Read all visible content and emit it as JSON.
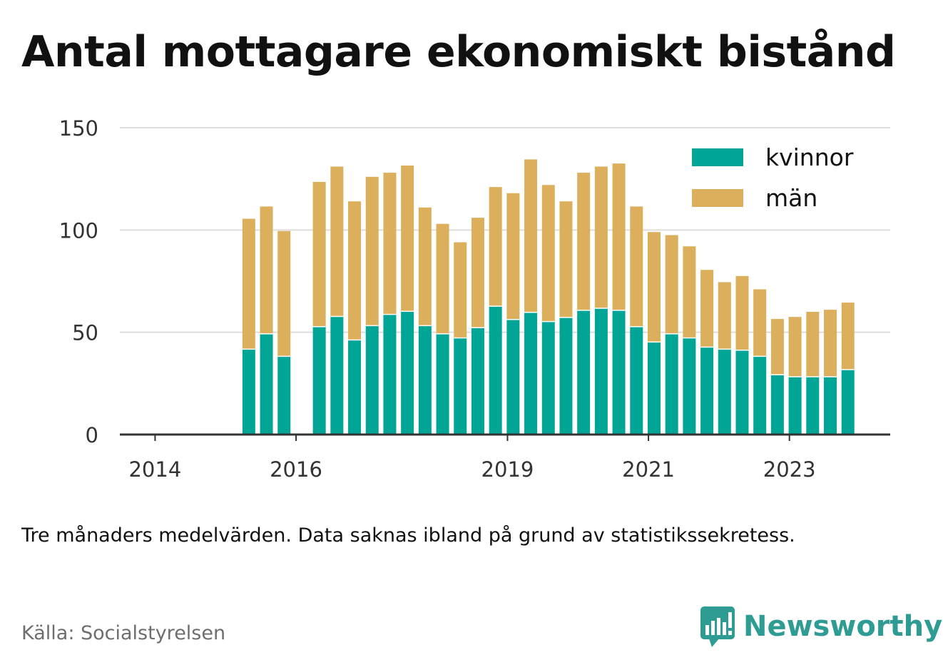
{
  "title": "Antal mottagare ekonomiskt bistånd",
  "note": "Tre månaders medelvärden. Data saknas ibland på grund av statistikssekretess.",
  "source": "Källa: Socialstyrelsen",
  "brand": {
    "name": "Newsworthy",
    "icon": "newsworthy-logo-icon",
    "color": "#2e9c93"
  },
  "colors": {
    "kvinnor": "#00a596",
    "man": "#dcaf5c",
    "grid": "#dddddd",
    "axis": "#333333"
  },
  "chart_data": {
    "type": "bar",
    "stacked": true,
    "grid": true,
    "legend_position": "top-right",
    "xlabel": "",
    "ylabel": "",
    "ylim": [
      0,
      150
    ],
    "yticks": [
      0,
      50,
      100,
      150
    ],
    "xticks": [
      {
        "label": "2014",
        "x": 2014.0
      },
      {
        "label": "2016",
        "x": 2016.0
      },
      {
        "label": "2019",
        "x": 2019.0
      },
      {
        "label": "2021",
        "x": 2021.0
      },
      {
        "label": "2023",
        "x": 2023.0
      }
    ],
    "xlim": [
      2013.5,
      2024.43
    ],
    "x": [
      2015.33,
      2015.58,
      2015.83,
      2016.33,
      2016.58,
      2016.83,
      2017.08,
      2017.33,
      2017.58,
      2017.83,
      2018.08,
      2018.33,
      2018.58,
      2018.83,
      2019.08,
      2019.33,
      2019.58,
      2019.83,
      2020.08,
      2020.33,
      2020.58,
      2020.83,
      2021.08,
      2021.33,
      2021.58,
      2021.83,
      2022.08,
      2022.33,
      2022.58,
      2022.83,
      2023.08,
      2023.33,
      2023.58,
      2023.83
    ],
    "series": [
      {
        "name": "kvinnor",
        "values": [
          42,
          49.5,
          38.5,
          53,
          58,
          46.5,
          53.5,
          59,
          60.5,
          53.5,
          49.5,
          47.5,
          52.5,
          63,
          56.5,
          60,
          55.5,
          57.5,
          61,
          62,
          61,
          53,
          45.5,
          49.5,
          47.5,
          43,
          42,
          41.5,
          38.5,
          29.5,
          28.5,
          28.5,
          28.5,
          32
        ]
      },
      {
        "name": "män",
        "values": [
          63.5,
          62,
          61,
          70.5,
          73,
          67.5,
          72.5,
          69,
          71,
          57.5,
          53.5,
          46.5,
          53.5,
          58,
          61.5,
          74.5,
          66.5,
          56.5,
          67,
          69,
          71.5,
          58.5,
          53.5,
          48,
          44.5,
          37.5,
          32.5,
          36,
          32.5,
          27,
          29,
          31.5,
          32.5,
          32.5
        ]
      }
    ]
  }
}
